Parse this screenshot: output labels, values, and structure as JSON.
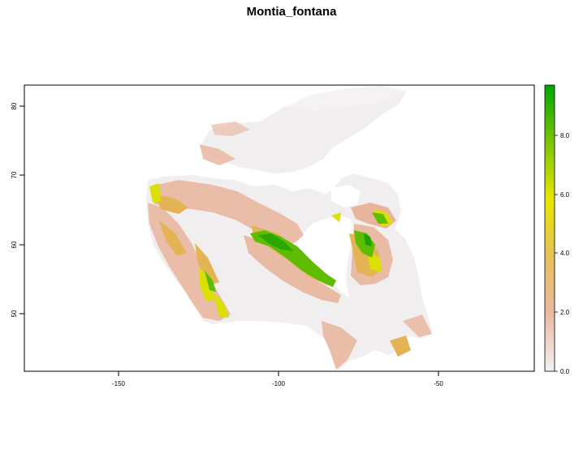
{
  "title": "Montia_fontana",
  "map": {
    "x_ticks": [
      "-150",
      "-100",
      "-50"
    ],
    "y_ticks": [
      "50",
      "60",
      "70",
      "80"
    ],
    "x_range": [
      -180,
      -25
    ],
    "y_range": [
      41,
      84
    ],
    "region": "Canada"
  },
  "legend": {
    "ticks": [
      "0.0",
      "2.0",
      "4.0",
      "6.0",
      "8.0"
    ],
    "range": [
      0,
      9.6
    ],
    "colors": [
      "#f2f2f2",
      "#eab9a4",
      "#e6c05a",
      "#e6e600",
      "#7cc500",
      "#00a600"
    ]
  }
}
